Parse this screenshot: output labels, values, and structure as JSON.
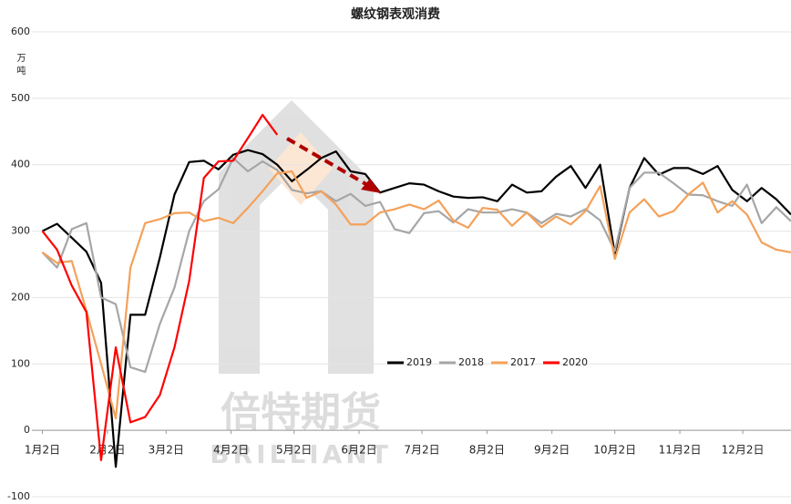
{
  "chart_data": {
    "type": "line",
    "title": "螺纹钢表观消费",
    "y_label": "万吨",
    "watermark": [
      "倍特期货",
      "BRILLIANT"
    ],
    "x": [
      0,
      7,
      14,
      21,
      28,
      35,
      42,
      49,
      56,
      63,
      70,
      77,
      84,
      91,
      98,
      105,
      112,
      119,
      126,
      133,
      140,
      147,
      154,
      161,
      168,
      175,
      182,
      189,
      196,
      203,
      210,
      217,
      224,
      231,
      238,
      245,
      252,
      259,
      266,
      273,
      280,
      287,
      294,
      301,
      308,
      315,
      322,
      329,
      336,
      343,
      350,
      357
    ],
    "xlim": [
      -5,
      357
    ],
    "xticks": [
      {
        "value": 0,
        "label": "1月2日"
      },
      {
        "value": 31,
        "label": "2月2日"
      },
      {
        "value": 59,
        "label": "3月2日"
      },
      {
        "value": 90,
        "label": "4月2日"
      },
      {
        "value": 120,
        "label": "5月2日"
      },
      {
        "value": 151,
        "label": "6月2日"
      },
      {
        "value": 181,
        "label": "7月2日"
      },
      {
        "value": 212,
        "label": "8月2日"
      },
      {
        "value": 243,
        "label": "9月2日"
      },
      {
        "value": 273,
        "label": "10月2日"
      },
      {
        "value": 304,
        "label": "11月2日"
      },
      {
        "value": 334,
        "label": "12月2日"
      }
    ],
    "ylim": [
      -100,
      600
    ],
    "yticks": [
      -100,
      0,
      100,
      200,
      300,
      400,
      500,
      600
    ],
    "grid": true,
    "series": [
      {
        "name": "2019",
        "color": "#000000",
        "values": [
          300,
          311,
          290,
          269,
          222,
          -55,
          174,
          174,
          260,
          355,
          404,
          406,
          393,
          415,
          422,
          416,
          400,
          375,
          392,
          410,
          420,
          390,
          386,
          358,
          365,
          372,
          370,
          360,
          352,
          350,
          351,
          345,
          370,
          358,
          360,
          382,
          398,
          365,
          400,
          265,
          365,
          410,
          385,
          395,
          395,
          386,
          398,
          362,
          345,
          365,
          348,
          325
        ]
      },
      {
        "name": "2018",
        "color": "#a6a6a6",
        "values": [
          268,
          245,
          303,
          312,
          200,
          190,
          95,
          88,
          160,
          215,
          300,
          345,
          363,
          410,
          390,
          405,
          392,
          362,
          357,
          360,
          345,
          356,
          338,
          344,
          303,
          297,
          327,
          330,
          313,
          333,
          328,
          328,
          333,
          328,
          312,
          326,
          322,
          333,
          316,
          270,
          365,
          388,
          388,
          372,
          355,
          354,
          345,
          338,
          370,
          312,
          336,
          315
        ]
      },
      {
        "name": "2017",
        "color": "#f4a15a",
        "values": [
          268,
          252,
          255,
          180,
          100,
          18,
          245,
          312,
          318,
          327,
          328,
          315,
          320,
          312,
          335,
          360,
          387,
          390,
          350,
          360,
          340,
          310,
          310,
          328,
          333,
          340,
          333,
          346,
          316,
          305,
          335,
          332,
          308,
          328,
          306,
          322,
          310,
          330,
          368,
          258,
          328,
          348,
          322,
          330,
          355,
          373,
          328,
          345,
          325,
          283,
          272,
          268
        ]
      },
      {
        "name": "2020",
        "color": "#ff0000",
        "values": [
          300,
          272,
          218,
          178,
          -45,
          125,
          12,
          20,
          53,
          125,
          225,
          380,
          405,
          406,
          440,
          475,
          445,
          null,
          null,
          null,
          null,
          null,
          null,
          null,
          null,
          null,
          null,
          null,
          null,
          null,
          null,
          null,
          null,
          null,
          null,
          null,
          null,
          null,
          null,
          null,
          null,
          null,
          null,
          null,
          null,
          null,
          null,
          null,
          null,
          null,
          null,
          null
        ]
      }
    ]
  }
}
